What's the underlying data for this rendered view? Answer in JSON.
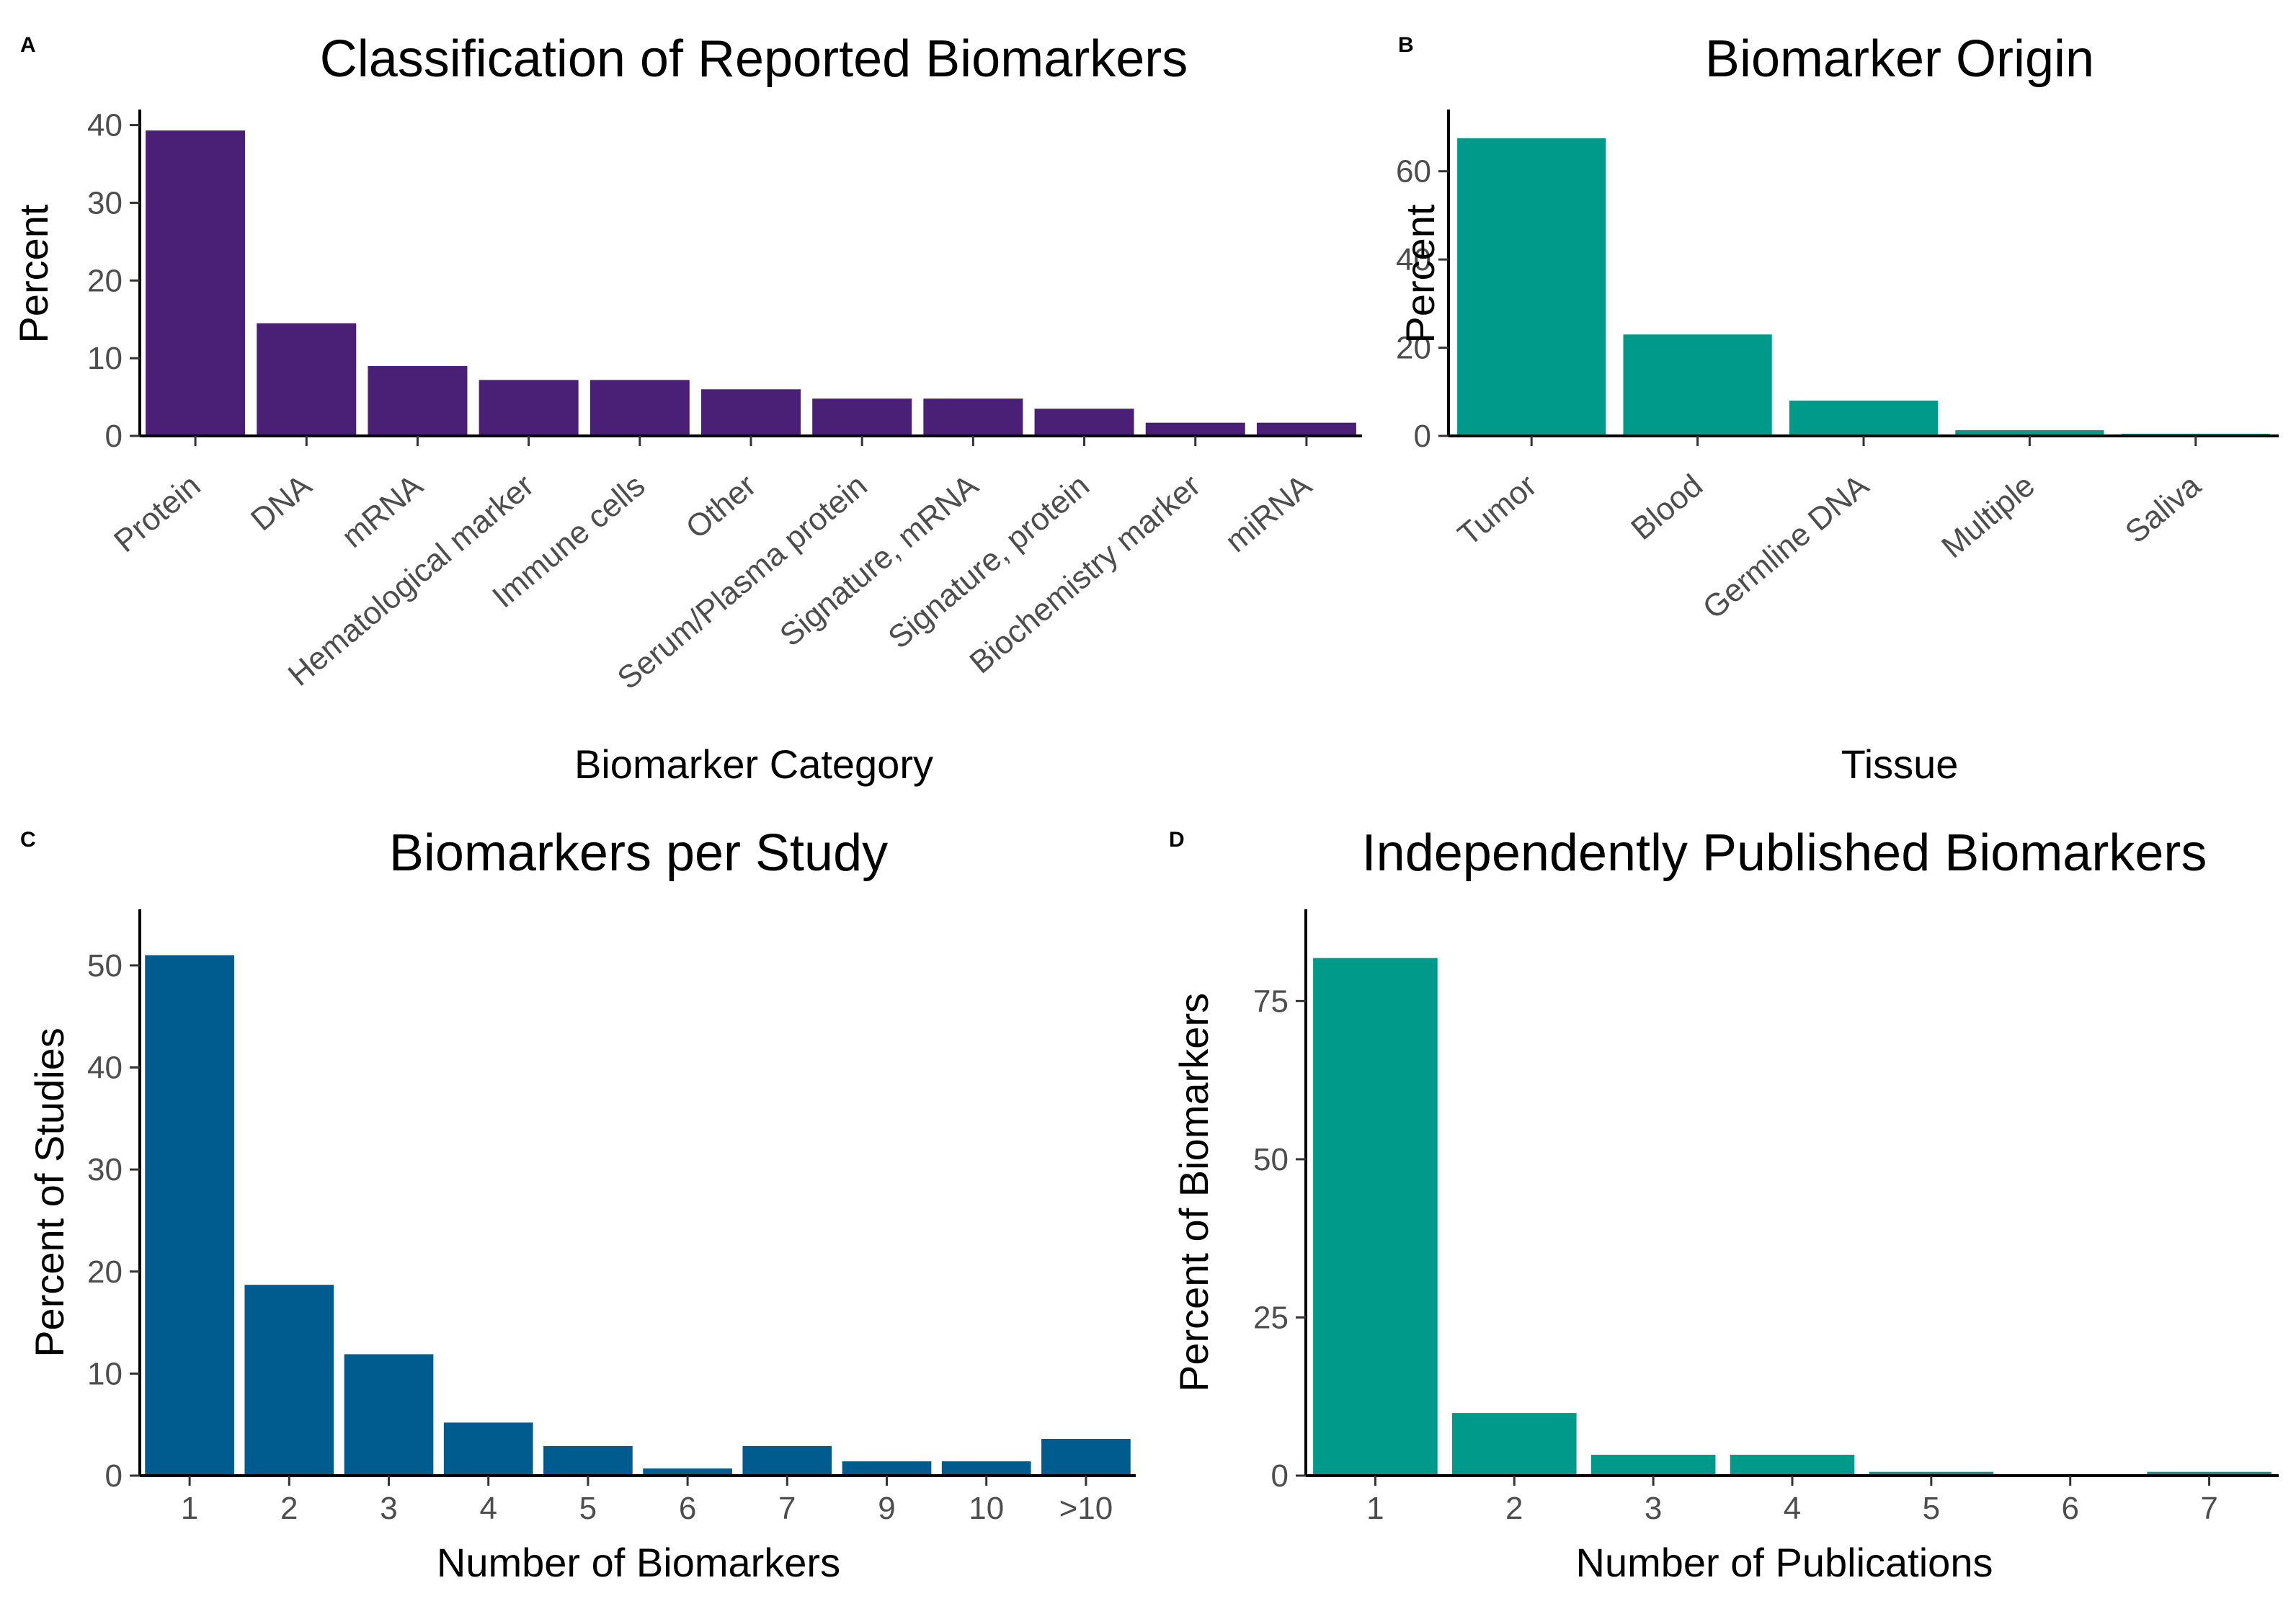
{
  "chart_data": [
    {
      "panel": "A",
      "type": "bar",
      "title": "Classification of Reported Biomarkers",
      "xlabel": "Biomarker Category",
      "ylabel": "Percent",
      "categories": [
        "Protein",
        "DNA",
        "mRNA",
        "Hematological marker",
        "Immune cells",
        "Other",
        "Serum/Plasma protein",
        "Signature, mRNA",
        "Signature, protein",
        "Biochemistry marker",
        "miRNA"
      ],
      "values": [
        39.3,
        14.5,
        9.0,
        7.2,
        7.2,
        6.0,
        4.8,
        4.8,
        3.5,
        1.7,
        1.7
      ],
      "yticks": [
        0,
        10,
        20,
        30,
        40
      ],
      "ylim": [
        0,
        42
      ],
      "color": "#4a2076",
      "rotate_ticks": true,
      "grid": false
    },
    {
      "panel": "B",
      "type": "bar",
      "title": "Biomarker Origin",
      "xlabel": "Tissue",
      "ylabel": "Percent",
      "categories": [
        "Tumor",
        "Blood",
        "Germline DNA",
        "Multiple",
        "Saliva"
      ],
      "values": [
        67.5,
        23.0,
        8.0,
        1.3,
        0.5
      ],
      "yticks": [
        0,
        20,
        40,
        60
      ],
      "ylim": [
        0,
        74
      ],
      "color": "#009a8a",
      "rotate_ticks": true,
      "grid": false
    },
    {
      "panel": "C",
      "type": "bar",
      "title": "Biomarkers per Study",
      "xlabel": "Number of Biomarkers",
      "ylabel": "Percent of Studies",
      "categories": [
        "1",
        "2",
        "3",
        "4",
        "5",
        "6",
        "7",
        "9",
        "10",
        ">10"
      ],
      "values": [
        51.0,
        18.7,
        11.9,
        5.2,
        2.9,
        0.7,
        2.9,
        1.4,
        1.4,
        3.6
      ],
      "yticks": [
        0,
        10,
        20,
        30,
        40,
        50
      ],
      "ylim": [
        0,
        55.5
      ],
      "color": "#005b8f",
      "rotate_ticks": false,
      "grid": false
    },
    {
      "panel": "D",
      "type": "bar",
      "title": "Independently Published Biomarkers",
      "xlabel": "Number of Publications",
      "ylabel": "Percent of Biomarkers",
      "categories": [
        "1",
        "2",
        "3",
        "4",
        "5",
        "6",
        "7"
      ],
      "values": [
        81.8,
        9.9,
        3.3,
        3.3,
        0.6,
        0.0,
        0.6
      ],
      "yticks": [
        0,
        25,
        50,
        75
      ],
      "ylim": [
        0,
        89.5
      ],
      "color": "#009a8a",
      "rotate_ticks": false,
      "grid": false
    }
  ]
}
